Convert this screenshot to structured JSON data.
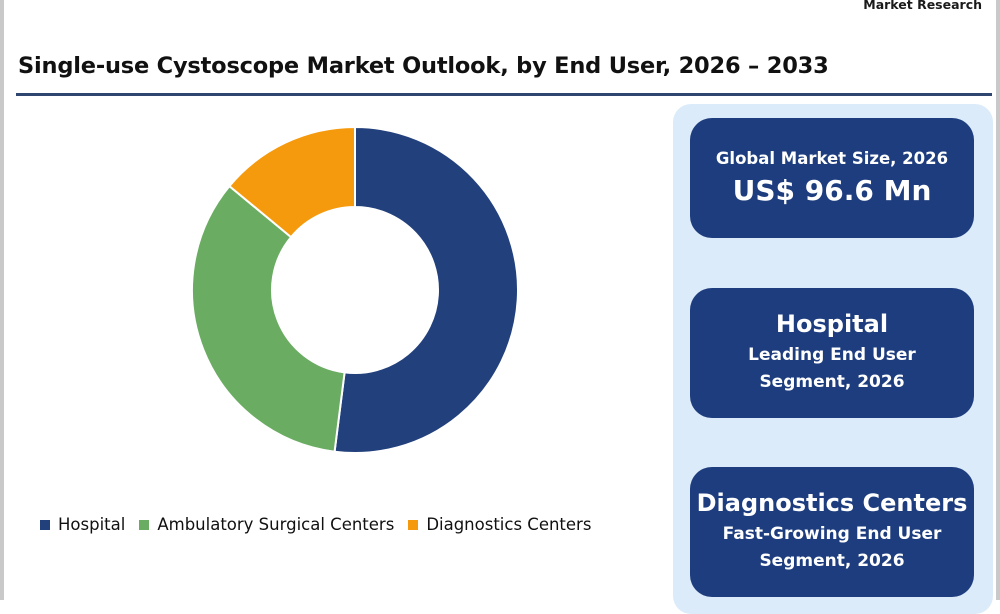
{
  "brand": "Market Research",
  "title": "Single-use Cystoscope Market Outlook, by End User, 2026 – 2033",
  "chart_data": {
    "type": "pie",
    "donut": true,
    "categories": [
      "Hospital",
      "Ambulatory Surgical Centers",
      "Diagnostics Centers"
    ],
    "values": [
      52,
      34,
      14
    ],
    "colors": [
      "#22407c",
      "#6aad62",
      "#f59a0d"
    ],
    "legend_position": "bottom",
    "title": ""
  },
  "cards": {
    "market_size_label": "Global Market Size, 2026",
    "market_size_value": "US$ 96.6 Mn",
    "leading_segment": "Hospital",
    "leading_segment_desc_1": "Leading End User",
    "leading_segment_desc_2": "Segment, 2026",
    "growing_segment": "Diagnostics Centers",
    "growing_segment_desc_1": "Fast-Growing End User",
    "growing_segment_desc_2": "Segment, 2026"
  }
}
